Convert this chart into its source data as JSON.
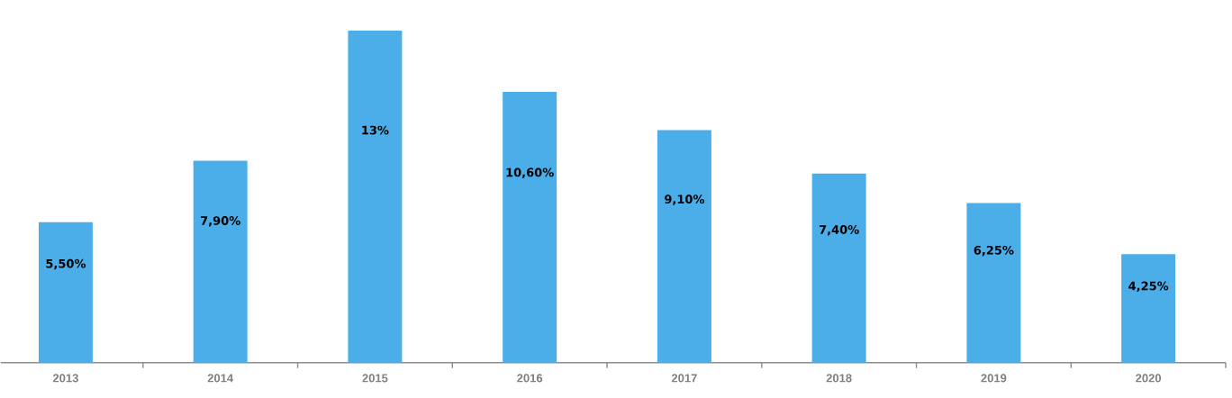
{
  "chart_data": {
    "type": "bar",
    "categories": [
      "2013",
      "2014",
      "2015",
      "2016",
      "2017",
      "2018",
      "2019",
      "2020"
    ],
    "values": [
      5.5,
      7.9,
      13,
      10.6,
      9.1,
      7.4,
      6.25,
      4.25
    ],
    "value_labels": [
      "5,50%",
      "7,90%",
      "13%",
      "10,60%",
      "9,10%",
      "7,40%",
      "6,25%",
      "4,25%"
    ],
    "color": "#4baee8"
  }
}
